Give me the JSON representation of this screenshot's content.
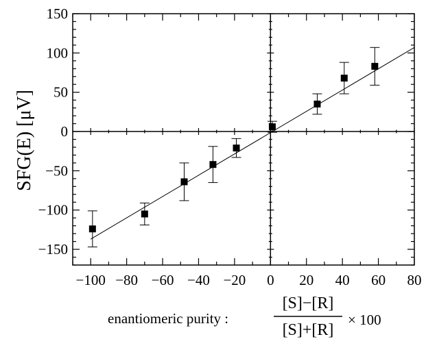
{
  "chart_data": {
    "type": "scatter",
    "title": "",
    "ylabel": "SFG(E) [μV]",
    "xlabel": {
      "prefix": "enantiomeric purity :",
      "numerator": "[S]−[R]",
      "denominator": "[S]+[R]",
      "suffix": "× 100"
    },
    "xlim": [
      -110,
      80
    ],
    "ylim": [
      -170,
      150
    ],
    "xticks": [
      -100,
      -80,
      -60,
      -40,
      -20,
      0,
      20,
      40,
      60,
      80
    ],
    "xtick_labels": [
      "−100",
      "−80",
      "−60",
      "−40",
      "−20",
      "0",
      "20",
      "40",
      "60",
      "80"
    ],
    "yticks": [
      -150,
      -100,
      -50,
      0,
      50,
      100,
      150
    ],
    "ytick_labels": [
      "−150",
      "−100",
      "−50",
      "0",
      "50",
      "100",
      "150"
    ],
    "grid": false,
    "zero_lines": true,
    "points": [
      {
        "x": -99,
        "y": -124,
        "err": 23
      },
      {
        "x": -70,
        "y": -105,
        "err": 14
      },
      {
        "x": -48,
        "y": -64,
        "err": 24
      },
      {
        "x": -32,
        "y": -42,
        "err": 23
      },
      {
        "x": -19,
        "y": -21,
        "err": 12
      },
      {
        "x": 1,
        "y": 6,
        "err": 7
      },
      {
        "x": 26,
        "y": 35,
        "err": 13
      },
      {
        "x": 41,
        "y": 68,
        "err": 20
      },
      {
        "x": 58,
        "y": 83,
        "err": 24
      }
    ],
    "fit_line": {
      "x": [
        -100,
        80
      ],
      "y": [
        -137,
        107
      ]
    }
  }
}
